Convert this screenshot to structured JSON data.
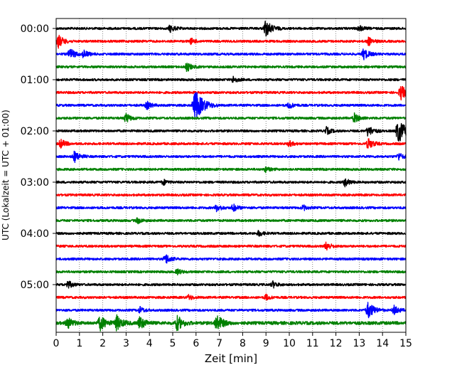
{
  "chart_data": {
    "type": "line",
    "title": "",
    "xlabel": "Zeit  [min]",
    "ylabel": "UTC (Lokalzeit = UTC + 01:00)",
    "xlim": [
      0,
      15
    ],
    "x_ticks": [
      "0",
      "1",
      "2",
      "3",
      "4",
      "5",
      "6",
      "7",
      "8",
      "9",
      "10",
      "11",
      "12",
      "13",
      "14",
      "15"
    ],
    "y_ticks": [
      "00:00",
      "01:00",
      "02:00",
      "03:00",
      "04:00",
      "05:00"
    ],
    "trace_interval_min": 15,
    "trace_count": 24,
    "trace_colors": [
      "#000000",
      "#ff0000",
      "#0000ff",
      "#008000"
    ],
    "grid": "vertical-dotted",
    "events": [
      {
        "trace": 0,
        "x": 4.9,
        "amp": 0.4
      },
      {
        "trace": 0,
        "x": 9.0,
        "amp": 0.9
      },
      {
        "trace": 0,
        "x": 13.0,
        "amp": 0.35
      },
      {
        "trace": 1,
        "x": 0.1,
        "amp": 0.7
      },
      {
        "trace": 1,
        "x": 5.8,
        "amp": 0.3
      },
      {
        "trace": 1,
        "x": 13.4,
        "amp": 0.45
      },
      {
        "trace": 2,
        "x": 0.6,
        "amp": 0.6
      },
      {
        "trace": 2,
        "x": 1.2,
        "amp": 0.45
      },
      {
        "trace": 2,
        "x": 13.2,
        "amp": 0.6
      },
      {
        "trace": 3,
        "x": 5.6,
        "amp": 0.5
      },
      {
        "trace": 4,
        "x": 7.6,
        "amp": 0.35
      },
      {
        "trace": 5,
        "x": 14.8,
        "amp": 0.8
      },
      {
        "trace": 6,
        "x": 6.0,
        "amp": 1.6
      },
      {
        "trace": 6,
        "x": 3.9,
        "amp": 0.4
      },
      {
        "trace": 6,
        "x": 10.0,
        "amp": 0.35
      },
      {
        "trace": 7,
        "x": 3.0,
        "amp": 0.5
      },
      {
        "trace": 7,
        "x": 12.8,
        "amp": 0.5
      },
      {
        "trace": 8,
        "x": 14.7,
        "amp": 1.3
      },
      {
        "trace": 8,
        "x": 11.6,
        "amp": 0.4
      },
      {
        "trace": 8,
        "x": 13.4,
        "amp": 0.6
      },
      {
        "trace": 9,
        "x": 0.2,
        "amp": 0.5
      },
      {
        "trace": 9,
        "x": 13.4,
        "amp": 0.6
      },
      {
        "trace": 9,
        "x": 10.0,
        "amp": 0.3
      },
      {
        "trace": 10,
        "x": 0.8,
        "amp": 0.6
      },
      {
        "trace": 10,
        "x": 14.7,
        "amp": 0.4
      },
      {
        "trace": 11,
        "x": 9.0,
        "amp": 0.3
      },
      {
        "trace": 12,
        "x": 4.6,
        "amp": 0.3
      },
      {
        "trace": 12,
        "x": 12.4,
        "amp": 0.45
      },
      {
        "trace": 14,
        "x": 6.9,
        "amp": 0.4
      },
      {
        "trace": 14,
        "x": 7.6,
        "amp": 0.4
      },
      {
        "trace": 14,
        "x": 10.6,
        "amp": 0.3
      },
      {
        "trace": 15,
        "x": 3.5,
        "amp": 0.3
      },
      {
        "trace": 16,
        "x": 8.7,
        "amp": 0.3
      },
      {
        "trace": 17,
        "x": 11.6,
        "amp": 0.45
      },
      {
        "trace": 18,
        "x": 4.7,
        "amp": 0.55
      },
      {
        "trace": 19,
        "x": 5.2,
        "amp": 0.3
      },
      {
        "trace": 20,
        "x": 0.5,
        "amp": 0.45
      },
      {
        "trace": 20,
        "x": 9.3,
        "amp": 0.35
      },
      {
        "trace": 21,
        "x": 5.7,
        "amp": 0.3
      },
      {
        "trace": 21,
        "x": 9.0,
        "amp": 0.3
      },
      {
        "trace": 22,
        "x": 13.4,
        "amp": 0.9
      },
      {
        "trace": 22,
        "x": 14.5,
        "amp": 0.5
      },
      {
        "trace": 22,
        "x": 3.6,
        "amp": 0.35
      },
      {
        "trace": 23,
        "x": 1.9,
        "amp": 0.8
      },
      {
        "trace": 23,
        "x": 2.6,
        "amp": 0.8
      },
      {
        "trace": 23,
        "x": 3.6,
        "amp": 0.7
      },
      {
        "trace": 23,
        "x": 5.2,
        "amp": 0.8
      },
      {
        "trace": 23,
        "x": 6.9,
        "amp": 0.9
      },
      {
        "trace": 23,
        "x": 0.5,
        "amp": 0.6
      }
    ]
  }
}
